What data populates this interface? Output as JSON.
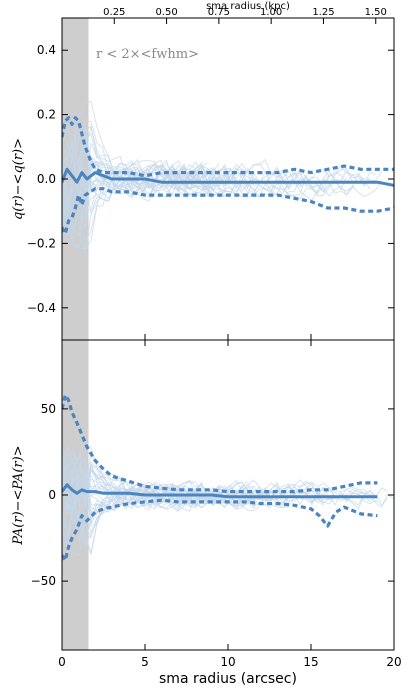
{
  "chart_data": [
    {
      "type": "line",
      "panel": "top",
      "ylabel": "q(r)−<q(r)>",
      "xlim": [
        0,
        20
      ],
      "ylim": [
        -0.5,
        0.5
      ],
      "yticks": [
        -0.4,
        -0.2,
        0.0,
        0.2,
        0.4
      ],
      "ytick_labels": [
        "−0.4",
        "−0.2",
        "0.0",
        "0.2",
        "0.4"
      ],
      "top_axis": {
        "label": "sma radius (kpc)",
        "ticks_arcsec": [
          2.55,
          5.08,
          7.62,
          10.16,
          12.7,
          15.24,
          17.78
        ],
        "tick_labels": [
          "0.25",
          "0.50",
          "0.75",
          "1.00",
          "1.25",
          "1.50"
        ],
        "labeled_ticks_arcsec": [
          3.15,
          6.3,
          9.45,
          12.6,
          15.75,
          18.9
        ]
      },
      "shaded_region": {
        "x0": 0,
        "x1": 1.6,
        "color": "#bdbdbd"
      },
      "annotation": "r < 2×<fwhm>",
      "series": [
        {
          "style": "median",
          "x": [
            0,
            0.3,
            0.6,
            0.9,
            1.2,
            1.5,
            2.0,
            2.5,
            3,
            4,
            5,
            6,
            7,
            8,
            9,
            10,
            11,
            12,
            13,
            14,
            15,
            16,
            17,
            18,
            19,
            20
          ],
          "values": [
            -0.01,
            0.03,
            0.01,
            -0.01,
            0.02,
            0.0,
            0.02,
            0.01,
            0.0,
            0.0,
            0.0,
            -0.01,
            -0.01,
            -0.01,
            -0.01,
            -0.01,
            -0.01,
            -0.01,
            -0.01,
            -0.01,
            -0.01,
            -0.01,
            -0.01,
            -0.01,
            -0.01,
            -0.02
          ]
        },
        {
          "style": "upper",
          "x": [
            0,
            0.2,
            0.4,
            0.6,
            0.8,
            1.0,
            1.2,
            1.4,
            1.7,
            2.0,
            2.5,
            3,
            4,
            5,
            6,
            7,
            8,
            9,
            10,
            11,
            12,
            13,
            14,
            15,
            16,
            17,
            18,
            19,
            20
          ],
          "values": [
            0.13,
            0.18,
            0.19,
            0.17,
            0.19,
            0.18,
            0.14,
            0.1,
            0.06,
            0.03,
            0.02,
            0.02,
            0.02,
            0.01,
            0.02,
            0.02,
            0.02,
            0.02,
            0.02,
            0.02,
            0.02,
            0.02,
            0.03,
            0.02,
            0.03,
            0.04,
            0.03,
            0.03,
            0.03
          ]
        },
        {
          "style": "lower",
          "x": [
            0,
            0.2,
            0.4,
            0.6,
            0.8,
            1.0,
            1.2,
            1.4,
            1.7,
            2.0,
            2.5,
            3,
            4,
            5,
            6,
            7,
            8,
            9,
            10,
            11,
            12,
            13,
            14,
            15,
            16,
            17,
            18,
            19,
            20
          ],
          "values": [
            -0.15,
            -0.17,
            -0.13,
            -0.12,
            -0.09,
            -0.05,
            -0.08,
            -0.05,
            -0.04,
            -0.03,
            -0.03,
            -0.04,
            -0.04,
            -0.05,
            -0.05,
            -0.05,
            -0.05,
            -0.05,
            -0.05,
            -0.05,
            -0.05,
            -0.05,
            -0.06,
            -0.07,
            -0.09,
            -0.09,
            -0.1,
            -0.1,
            -0.09
          ]
        }
      ]
    },
    {
      "type": "line",
      "panel": "bottom",
      "ylabel": "PA(r)−<PA(r)>",
      "xlabel": "sma radius (arcsec)",
      "xlim": [
        0,
        20
      ],
      "xticks": [
        0,
        5,
        10,
        15,
        20
      ],
      "xtick_labels": [
        "0",
        "5",
        "10",
        "15",
        "20"
      ],
      "ylim": [
        -90,
        90
      ],
      "yticks": [
        -50,
        0,
        50
      ],
      "ytick_labels": [
        "−50",
        "0",
        "50"
      ],
      "shaded_region": {
        "x0": 0,
        "x1": 1.6,
        "color": "#bdbdbd"
      },
      "series": [
        {
          "style": "median",
          "x": [
            0,
            0.3,
            0.6,
            0.9,
            1.2,
            1.5,
            2.0,
            2.5,
            3,
            4,
            5,
            6,
            7,
            8,
            9,
            10,
            11,
            12,
            13,
            14,
            15,
            16,
            17,
            18,
            19
          ],
          "values": [
            2,
            6,
            3,
            1,
            3,
            2,
            2,
            1,
            1,
            1,
            0,
            0,
            0,
            0,
            0,
            -1,
            -1,
            -1,
            -1,
            -1,
            -1,
            -1,
            -1,
            -1,
            -1
          ]
        },
        {
          "style": "upper",
          "x": [
            0,
            0.2,
            0.4,
            0.6,
            0.9,
            1.2,
            1.5,
            2.0,
            2.5,
            3,
            4,
            5,
            6,
            7,
            8,
            9,
            10,
            11,
            12,
            13,
            14,
            15,
            16,
            17,
            18,
            19
          ],
          "values": [
            50,
            58,
            55,
            48,
            42,
            35,
            28,
            20,
            15,
            11,
            8,
            5,
            4,
            3,
            3,
            3,
            2,
            2,
            2,
            2,
            2,
            3,
            3,
            5,
            7,
            7
          ]
        },
        {
          "style": "lower",
          "x": [
            0,
            0.2,
            0.4,
            0.6,
            0.9,
            1.2,
            1.5,
            2.0,
            2.5,
            3,
            4,
            5,
            6,
            7,
            8,
            9,
            10,
            11,
            12,
            13,
            14,
            15,
            15.5,
            16,
            16.5,
            17,
            18,
            19
          ],
          "values": [
            -35,
            -38,
            -30,
            -25,
            -20,
            -12,
            -15,
            -10,
            -8,
            -7,
            -5,
            -4,
            -3,
            -4,
            -4,
            -4,
            -4,
            -4,
            -5,
            -5,
            -6,
            -8,
            -12,
            -18,
            -10,
            -7,
            -11,
            -12
          ]
        }
      ]
    }
  ]
}
